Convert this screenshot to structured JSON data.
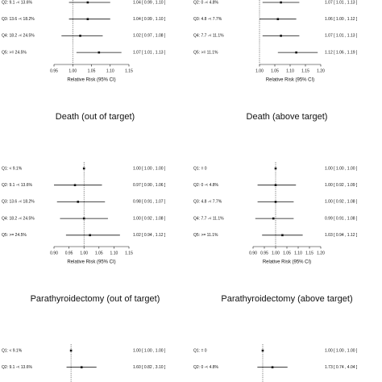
{
  "chart_data": [
    {
      "type": "forest",
      "title": "Death (out of target)",
      "xlabel": "Relative Risk (95% CI)",
      "categories": [
        "Q2: 9.1 -< 13.6%",
        "Q3: 13.6 -< 18.2%",
        "Q4: 18.2 -< 24.5%",
        "Q5: >= 24.5%"
      ],
      "values": [
        1.04,
        1.04,
        1.02,
        1.07
      ],
      "lower": [
        0.99,
        0.99,
        0.97,
        1.01
      ],
      "upper": [
        1.1,
        1.1,
        1.08,
        1.13
      ],
      "value_labels": [
        "1.04 [ 0.99 , 1.10 ]",
        "1.04 [ 0.99 , 1.10 ]",
        "1.02 [ 0.97 , 1.08 ]",
        "1.07 [ 1.01 , 1.13 ]"
      ],
      "xlim": [
        0.95,
        1.15
      ],
      "xticks": [
        0.95,
        {
          "value": 1,
          "label": "1.00"
        },
        1.05,
        {
          "value": 1.1,
          "label": "1.10"
        },
        1.15
      ],
      "reference_line": 1
    },
    {
      "type": "forest",
      "title": "Death (above target)",
      "xlabel": "Relative Risk (95% CI)",
      "categories": [
        "Q2: 0 -< 4.8%",
        "Q3: 4.8 -< 7.7%",
        "Q4: 7.7 -< 11.1%",
        "Q5: >= 11.1%"
      ],
      "values": [
        1.07,
        1.06,
        1.07,
        1.12
      ],
      "lower": [
        1.01,
        1.0,
        1.01,
        1.06
      ],
      "upper": [
        1.13,
        1.12,
        1.13,
        1.19
      ],
      "value_labels": [
        "1.07 [ 1.01 , 1.13 ]",
        "1.06 [ 1.00 , 1.12 ]",
        "1.07 [ 1.01 , 1.13 ]",
        "1.12 [ 1.06 , 1.19 ]"
      ],
      "xlim": [
        1,
        1.2
      ],
      "xticks": [
        {
          "value": 1,
          "label": "1.00"
        },
        1.05,
        {
          "value": 1.1,
          "label": "1.10"
        },
        1.15,
        {
          "value": 1.2,
          "label": "1.20"
        }
      ],
      "reference_line": 1
    },
    {
      "type": "forest",
      "title": "Parathyroidectomy (out of target)",
      "xlabel": "Relative Risk (95% CI)",
      "categories": [
        "Q1: < 9.1%",
        "Q2: 9.1 -< 13.6%",
        "Q3: 13.6 -< 18.2%",
        "Q4: 18.2 -< 24.5%",
        "Q5: >= 24.5%"
      ],
      "values": [
        1,
        0.97,
        0.98,
        1,
        1.02
      ],
      "lower": [
        1,
        0.9,
        0.91,
        0.92,
        0.94
      ],
      "upper": [
        1,
        1.06,
        1.07,
        1.08,
        1.12
      ],
      "value_labels": [
        "1.00 [ 1.00 , 1.00 ]",
        "0.97 [ 0.90 , 1.06 ]",
        "0.98 [ 0.91 , 1.07 ]",
        "1.00 [ 0.92 , 1.08 ]",
        "1.02 [ 0.94 , 1.12 ]"
      ],
      "xlim": [
        0.9,
        1.15
      ],
      "xticks": [
        {
          "value": 0.9,
          "label": "0.90"
        },
        0.95,
        {
          "value": 1,
          "label": "1.00"
        },
        1.05,
        {
          "value": 1.1,
          "label": "1.10"
        },
        1.15
      ],
      "reference_line": 1
    },
    {
      "type": "forest",
      "title": "Parathyroidectomy (above target)",
      "xlabel": "Relative Risk (95% CI)",
      "categories": [
        "Q1: = 0",
        "Q2: 0 -< 4.8%",
        "Q3: 4.8 -< 7.7%",
        "Q4: 7.7 -< 11.1%",
        "Q5: >= 11.1%"
      ],
      "values": [
        1,
        1,
        1,
        0.99,
        1.03
      ],
      "lower": [
        1,
        0.92,
        0.92,
        0.91,
        0.94
      ],
      "upper": [
        1,
        1.09,
        1.08,
        1.08,
        1.12
      ],
      "value_labels": [
        "1.00 [ 1.00 , 1.00 ]",
        "1.00 [ 0.92 , 1.09 ]",
        "1.00 [ 0.92 , 1.08 ]",
        "0.99 [ 0.91 , 1.08 ]",
        "1.03 [ 0.94 , 1.12 ]"
      ],
      "xlim": [
        0.9,
        1.2
      ],
      "xticks": [
        {
          "value": 0.9,
          "label": "0.90"
        },
        0.95,
        {
          "value": 1,
          "label": "1.00"
        },
        1.05,
        {
          "value": 1.1,
          "label": "1.10"
        },
        1.15,
        {
          "value": 1.2,
          "label": "1.20"
        }
      ],
      "reference_line": 1
    },
    {
      "type": "forest",
      "categories": [
        "Q1: < 9.1%",
        "Q2: 9.1 -< 13.6%"
      ],
      "values": [
        1,
        1.6
      ],
      "lower": [
        1,
        0.82
      ],
      "upper": [
        1,
        3.1
      ],
      "value_labels": [
        "1.00 [ 1.00 , 1.00 ]",
        "1.60 [ 0.82 , 3.10 ]"
      ],
      "xlim": [
        0.47,
        13.1
      ],
      "log_x": true,
      "reference_line": 1
    },
    {
      "type": "forest",
      "categories": [
        "Q1: = 0",
        "Q2: 0 -< 4.8%"
      ],
      "values": [
        1,
        1.73
      ],
      "lower": [
        1,
        0.74
      ],
      "upper": [
        1,
        4.04
      ],
      "value_labels": [
        "1.00 [ 1.00 , 1.00 ]",
        "1.73 [ 0.74 , 4.04 ]"
      ],
      "xlim": [
        0.58,
        26.3
      ],
      "log_x": true,
      "reference_line": 1
    }
  ]
}
